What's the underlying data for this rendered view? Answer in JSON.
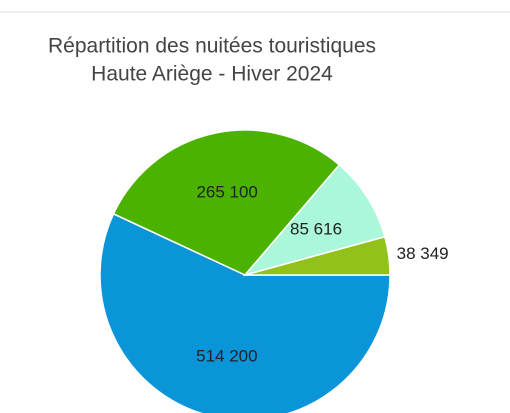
{
  "chart_data": {
    "type": "pie",
    "title": "Répartition des nuitées touristiques",
    "subtitle": "Haute Ariège - Hiver 2024",
    "values": [
      514200,
      265100,
      85616,
      38349
    ],
    "value_labels": [
      "514 200",
      "265 100",
      "85 616",
      "38 349"
    ],
    "colors": [
      "#0b95d9",
      "#4bb300",
      "#aaf7da",
      "#93c11c"
    ]
  }
}
